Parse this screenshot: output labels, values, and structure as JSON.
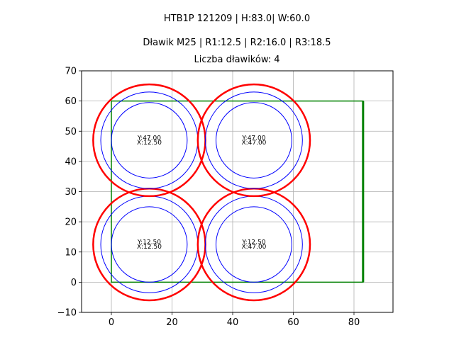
{
  "chart_data": {
    "type": "scatter",
    "title": "HTB1P 121209 | H:83.0| W:60.0",
    "subtitle": "Dławik M25 | R1:12.5 | R2:16.0 | R3:18.5",
    "subtitle2": "Liczba dławików: 4",
    "xlabel": "",
    "ylabel": "",
    "xlim": [
      -9.8,
      92.9
    ],
    "ylim": [
      -10,
      70
    ],
    "grid": true,
    "x_ticks": [
      "0",
      "20",
      "40",
      "60",
      "80"
    ],
    "y_ticks": [
      "−10",
      "0",
      "10",
      "20",
      "30",
      "40",
      "50",
      "60",
      "70"
    ],
    "rectangle": {
      "x": 0,
      "y": 0,
      "width": 83.0,
      "height": 60.0,
      "color": "#008000"
    },
    "radii": {
      "R1": 12.5,
      "R2": 16.0,
      "R3": 18.5
    },
    "colors": {
      "R1": "#0000ff",
      "R2": "#0000ff",
      "R3": "#ff0000",
      "rect": "#008000",
      "grid": "#b0b0b0"
    },
    "glands": [
      {
        "x": 12.5,
        "y": 12.5,
        "label_y": "Y:12.50",
        "label_x": "X:12.50"
      },
      {
        "x": 47.0,
        "y": 12.5,
        "label_y": "Y:12.50",
        "label_x": "X:47.00"
      },
      {
        "x": 12.5,
        "y": 47.0,
        "label_y": "Y:47.00",
        "label_x": "X:12.50"
      },
      {
        "x": 47.0,
        "y": 47.0,
        "label_y": "Y:47.00",
        "label_x": "X:47.00"
      }
    ]
  }
}
